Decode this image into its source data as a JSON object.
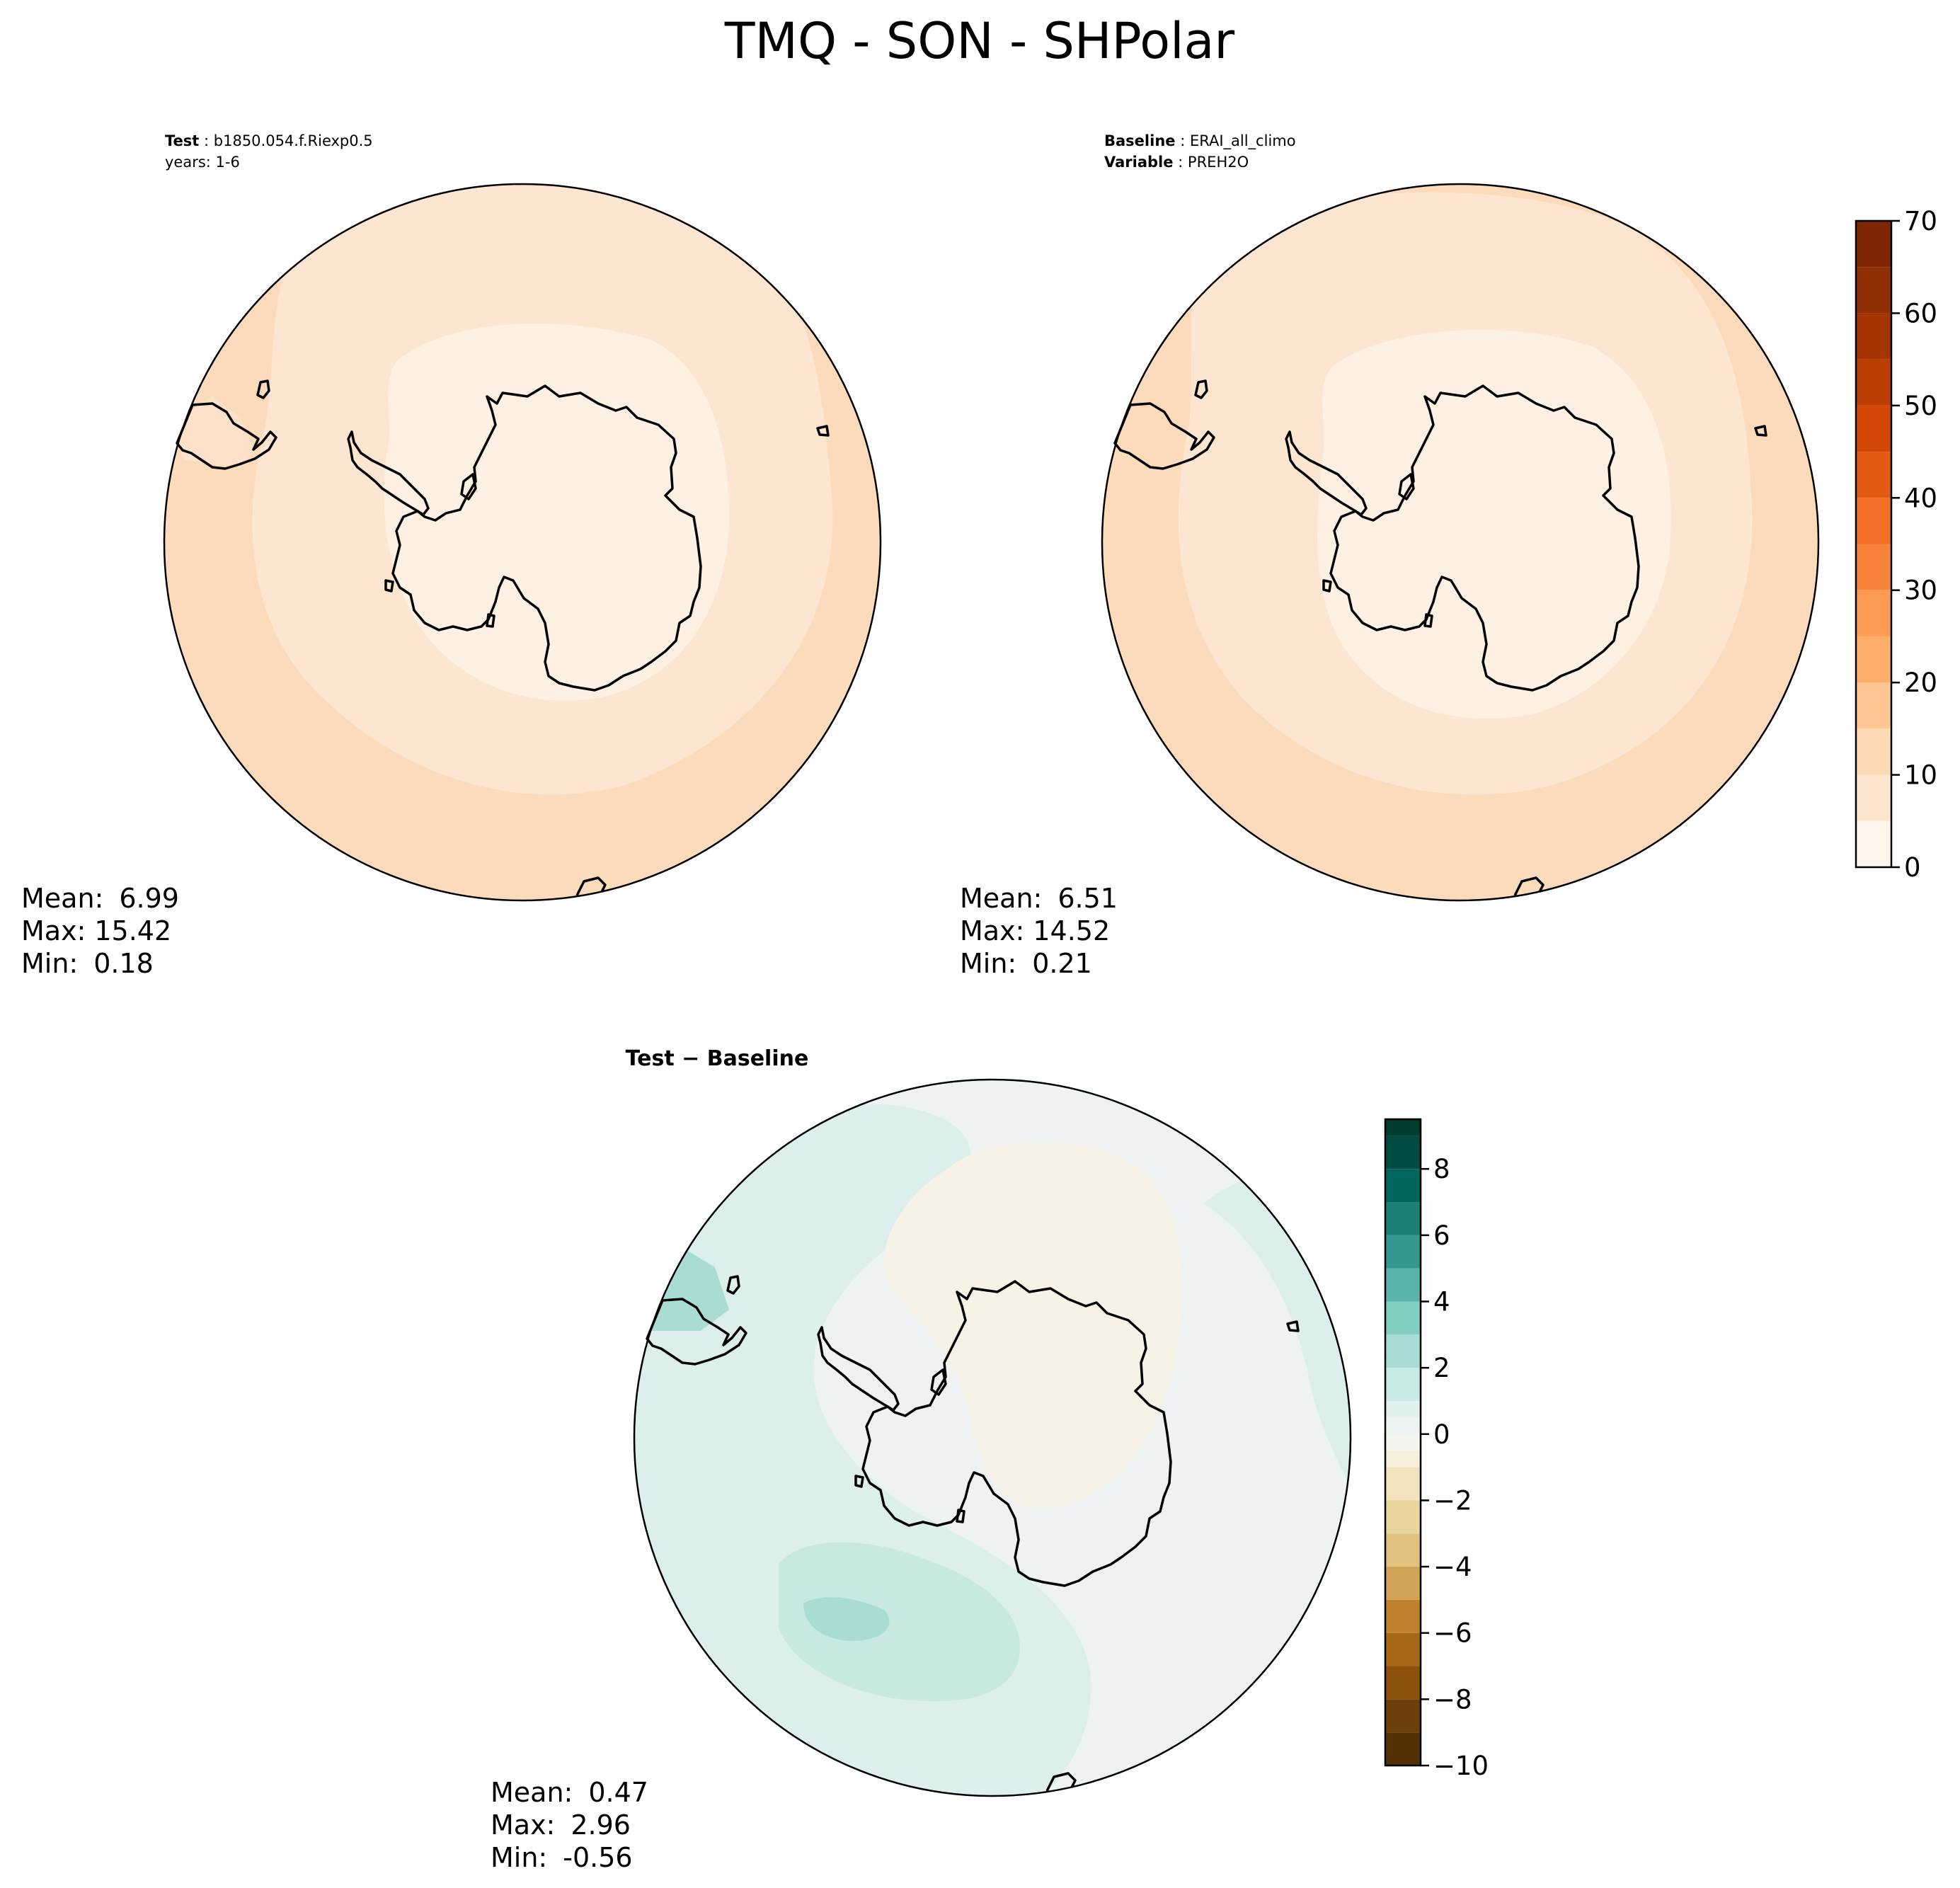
{
  "figure": {
    "title": "TMQ - SON - SHPolar"
  },
  "colors": {
    "ocean_band_outer": "#fcdbbd",
    "ocean_band_mid": "#fde6d1",
    "inner_band": "#fef0e3",
    "coast": "#000000",
    "diff_background": "#eef2f2",
    "diff_positive_light": "#dcefec",
    "diff_positive_mid": "#c8e8e2",
    "diff_positive_strong": "#a9ddd4",
    "diff_negative_light": "#f6f2e6"
  },
  "chart_data": [
    {
      "type": "heatmap",
      "panel": "test",
      "projection": "south-polar-stereographic",
      "header": [
        {
          "label": "Test",
          "value": "b1850.054.f.Riexp0.5"
        },
        {
          "label": "",
          "value": "years: 1-6"
        }
      ],
      "stats": [
        {
          "label": "Mean:",
          "value": "6.99"
        },
        {
          "label": "Max:",
          "value": "15.42"
        },
        {
          "label": "Min:",
          "value": "0.18"
        }
      ]
    },
    {
      "type": "heatmap",
      "panel": "baseline",
      "projection": "south-polar-stereographic",
      "header": [
        {
          "label": "Baseline",
          "value": "ERAI_all_climo"
        },
        {
          "label": "Variable",
          "value": "PREH2O"
        }
      ],
      "stats": [
        {
          "label": "Mean:",
          "value": "6.51"
        },
        {
          "label": "Max:",
          "value": "14.52"
        },
        {
          "label": "Min:",
          "value": "0.21"
        }
      ],
      "colorbar": {
        "range": [
          0,
          70
        ],
        "levels": [
          0,
          5,
          10,
          15,
          20,
          25,
          30,
          35,
          40,
          45,
          50,
          55,
          60,
          65,
          70
        ],
        "tick_labels": [
          "0",
          "10",
          "20",
          "30",
          "40",
          "50",
          "60",
          "70"
        ],
        "colors": [
          "#fff5eb",
          "#fee6ce",
          "#fdd9b4",
          "#fdc692",
          "#fdae6b",
          "#fd9a54",
          "#f8843c",
          "#f16f26",
          "#e35a13",
          "#d44807",
          "#bb3d02",
          "#a53603",
          "#8f2f04",
          "#7f2704"
        ]
      }
    },
    {
      "type": "heatmap",
      "panel": "difference",
      "projection": "south-polar-stereographic",
      "title": "Test − Baseline",
      "stats": [
        {
          "label": "Mean:",
          "value": "0.47"
        },
        {
          "label": "Max:",
          "value": "2.96"
        },
        {
          "label": "Min:",
          "value": "-0.56"
        }
      ],
      "colorbar": {
        "range": [
          -10,
          9.5
        ],
        "levels": [
          -10,
          -9,
          -8,
          -7,
          -6,
          -5,
          -4,
          -3,
          -2,
          -1,
          -0.5,
          0,
          0.5,
          1,
          2,
          3,
          4,
          5,
          6,
          7,
          8,
          9,
          9.5
        ],
        "tick_values": [
          -10,
          -8,
          -6,
          -4,
          -2,
          0,
          2,
          4,
          6,
          8
        ],
        "tick_labels": [
          "−10",
          "−8",
          "−6",
          "−4",
          "−2",
          "0",
          "2",
          "4",
          "6",
          "8"
        ],
        "colors": [
          "#543005",
          "#6d3f0b",
          "#8c510a",
          "#a76918",
          "#bf812d",
          "#cfa356",
          "#dfc27d",
          "#ead49e",
          "#f2e3bc",
          "#f6efdc",
          "#f5f5f0",
          "#eef4f3",
          "#e0f1ee",
          "#c7eae5",
          "#a7ddd6",
          "#80cdc1",
          "#5ab4a9",
          "#35978f",
          "#1d7f76",
          "#01665e",
          "#024b43",
          "#003c30"
        ]
      }
    }
  ]
}
